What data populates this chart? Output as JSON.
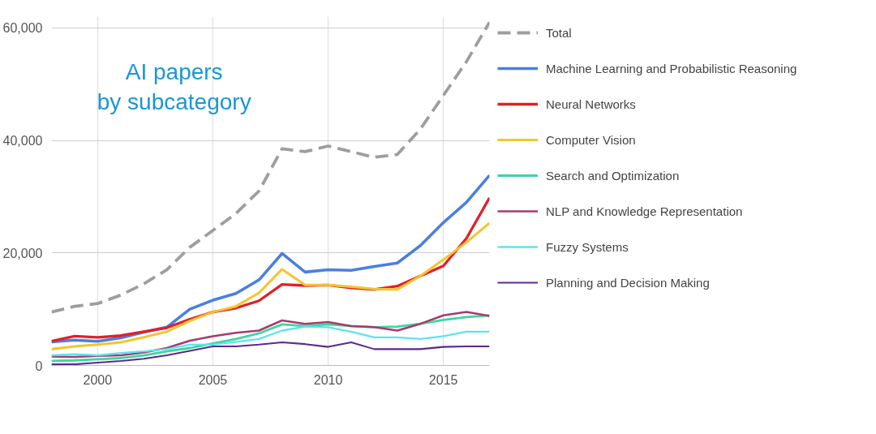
{
  "chart_data": {
    "type": "line",
    "title": "AI papers\nby subcategory",
    "x": [
      1998,
      1999,
      2000,
      2001,
      2002,
      2003,
      2004,
      2005,
      2006,
      2007,
      2008,
      2009,
      2010,
      2011,
      2012,
      2013,
      2014,
      2015,
      2016,
      2017
    ],
    "series": [
      {
        "name": "Total",
        "color": "#9e9e9e",
        "line_style": "dashed",
        "values": [
          9500,
          10500,
          11000,
          12500,
          14500,
          17000,
          21000,
          24000,
          27000,
          31000,
          38500,
          38000,
          39000,
          38000,
          37000,
          37500,
          42000,
          48000,
          54000,
          61000
        ]
      },
      {
        "name": "Machine Learning and Probabilistic Reasoning",
        "color": "#4a7fe0",
        "values": [
          4200,
          4500,
          4300,
          4900,
          5900,
          6800,
          10000,
          11600,
          12800,
          15200,
          19900,
          16600,
          17000,
          16900,
          17600,
          18200,
          21300,
          25400,
          29000,
          33800
        ]
      },
      {
        "name": "Neural Networks",
        "color": "#e0202a",
        "values": [
          4300,
          5200,
          5000,
          5300,
          6000,
          6700,
          8200,
          9500,
          10200,
          11500,
          14400,
          14200,
          14300,
          13800,
          13500,
          14100,
          15900,
          17700,
          22600,
          29800
        ]
      },
      {
        "name": "Computer Vision",
        "color": "#f5c431",
        "values": [
          2900,
          3400,
          3700,
          4100,
          5000,
          6000,
          7900,
          9500,
          10500,
          12900,
          17100,
          14300,
          14300,
          14000,
          13600,
          13500,
          15900,
          18800,
          21900,
          25300
        ]
      },
      {
        "name": "Search and Optimization",
        "color": "#3dd6a0",
        "values": [
          800,
          900,
          1100,
          1300,
          1800,
          2500,
          3100,
          3900,
          4700,
          5700,
          7300,
          7000,
          7300,
          7000,
          6800,
          6900,
          7400,
          8100,
          8600,
          8900
        ]
      },
      {
        "name": "NLP and Knowledge Representation",
        "color": "#a83a6e",
        "values": [
          1600,
          1500,
          1700,
          1800,
          2300,
          3100,
          4400,
          5200,
          5800,
          6200,
          8000,
          7400,
          7700,
          7000,
          6800,
          6200,
          7400,
          8900,
          9500,
          8800
        ]
      },
      {
        "name": "Fuzzy Systems",
        "color": "#5ce4f0",
        "values": [
          1800,
          2000,
          1800,
          2200,
          2500,
          2900,
          3700,
          3700,
          4200,
          4700,
          6200,
          6900,
          6800,
          6000,
          5000,
          5000,
          4700,
          5200,
          6000,
          6000
        ]
      },
      {
        "name": "Planning and Decision Making",
        "color": "#5a2a8e",
        "values": [
          200,
          200,
          500,
          800,
          1200,
          1800,
          2600,
          3400,
          3400,
          3700,
          4100,
          3800,
          3300,
          4100,
          2900,
          2900,
          2900,
          3300,
          3400,
          3400
        ]
      }
    ],
    "xlim": [
      1998,
      2017
    ],
    "xticks": [
      2000,
      2005,
      2010,
      2015
    ],
    "ylim": [
      0,
      62000
    ],
    "yticks": [
      {
        "value": 0,
        "label": "0"
      },
      {
        "value": 20000,
        "label": "20,000"
      },
      {
        "value": 40000,
        "label": "40,000"
      },
      {
        "value": 60000,
        "label": "60,000"
      }
    ],
    "grid": true,
    "legend": "right",
    "line_style": "solid"
  }
}
